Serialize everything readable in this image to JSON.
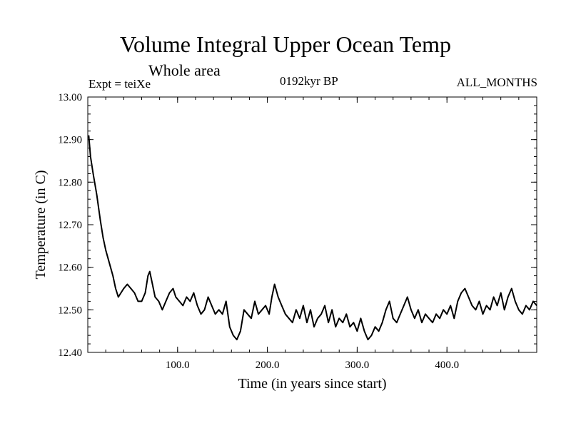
{
  "chart_data": {
    "type": "line",
    "title": "Volume Integral Upper Ocean Temp",
    "subtitle": "Whole area",
    "annotations": {
      "left": "Expt = teiXe",
      "center": "0192kyr BP",
      "right": "ALL_MONTHS"
    },
    "xlabel": "Time (in years since start)",
    "ylabel": "Temperature (in C)",
    "xlim": [
      0,
      500
    ],
    "ylim": [
      12.4,
      13.0
    ],
    "x_ticks": [
      100,
      200,
      300,
      400
    ],
    "x_tick_labels": [
      "100.0",
      "200.0",
      "300.0",
      "400.0"
    ],
    "y_ticks": [
      12.4,
      12.5,
      12.6,
      12.7,
      12.8,
      12.9,
      13.0
    ],
    "y_tick_labels": [
      "12.40",
      "12.50",
      "12.60",
      "12.70",
      "12.80",
      "12.90",
      "13.00"
    ],
    "grid": false,
    "series": [
      {
        "color": "#000000",
        "x": [
          1,
          3,
          6,
          10,
          14,
          17,
          20,
          24,
          28,
          31,
          34,
          37,
          40,
          44,
          48,
          52,
          56,
          60,
          64,
          67,
          69,
          72,
          75,
          79,
          83,
          87,
          91,
          95,
          98,
          102,
          106,
          110,
          114,
          118,
          122,
          126,
          130,
          134,
          138,
          142,
          146,
          150,
          154,
          158,
          162,
          166,
          170,
          174,
          178,
          182,
          186,
          190,
          194,
          198,
          202,
          205,
          208,
          212,
          216,
          220,
          224,
          228,
          232,
          236,
          240,
          244,
          248,
          252,
          256,
          260,
          264,
          268,
          272,
          276,
          280,
          284,
          288,
          292,
          296,
          300,
          304,
          308,
          312,
          316,
          320,
          324,
          328,
          332,
          336,
          340,
          344,
          348,
          352,
          356,
          360,
          364,
          368,
          372,
          376,
          380,
          384,
          388,
          392,
          396,
          400,
          404,
          408,
          412,
          416,
          420,
          424,
          428,
          432,
          436,
          440,
          444,
          448,
          452,
          456,
          460,
          464,
          468,
          472,
          476,
          480,
          484,
          488,
          492,
          496,
          500
        ],
        "y": [
          12.91,
          12.86,
          12.82,
          12.77,
          12.71,
          12.67,
          12.64,
          12.61,
          12.58,
          12.55,
          12.53,
          12.54,
          12.55,
          12.56,
          12.55,
          12.54,
          12.52,
          12.52,
          12.54,
          12.58,
          12.59,
          12.56,
          12.53,
          12.52,
          12.5,
          12.52,
          12.54,
          12.55,
          12.53,
          12.52,
          12.51,
          12.53,
          12.52,
          12.54,
          12.51,
          12.49,
          12.5,
          12.53,
          12.51,
          12.49,
          12.5,
          12.49,
          12.52,
          12.46,
          12.44,
          12.43,
          12.45,
          12.5,
          12.49,
          12.48,
          12.52,
          12.49,
          12.5,
          12.51,
          12.49,
          12.53,
          12.56,
          12.53,
          12.51,
          12.49,
          12.48,
          12.47,
          12.5,
          12.48,
          12.51,
          12.47,
          12.5,
          12.46,
          12.48,
          12.49,
          12.51,
          12.47,
          12.5,
          12.46,
          12.48,
          12.47,
          12.49,
          12.46,
          12.47,
          12.45,
          12.48,
          12.45,
          12.43,
          12.44,
          12.46,
          12.45,
          12.47,
          12.5,
          12.52,
          12.48,
          12.47,
          12.49,
          12.51,
          12.53,
          12.5,
          12.48,
          12.5,
          12.47,
          12.49,
          12.48,
          12.47,
          12.49,
          12.48,
          12.5,
          12.49,
          12.51,
          12.48,
          12.52,
          12.54,
          12.55,
          12.53,
          12.51,
          12.5,
          12.52,
          12.49,
          12.51,
          12.5,
          12.53,
          12.51,
          12.54,
          12.5,
          12.53,
          12.55,
          12.52,
          12.5,
          12.49,
          12.51,
          12.5,
          12.52,
          12.51
        ]
      }
    ]
  }
}
